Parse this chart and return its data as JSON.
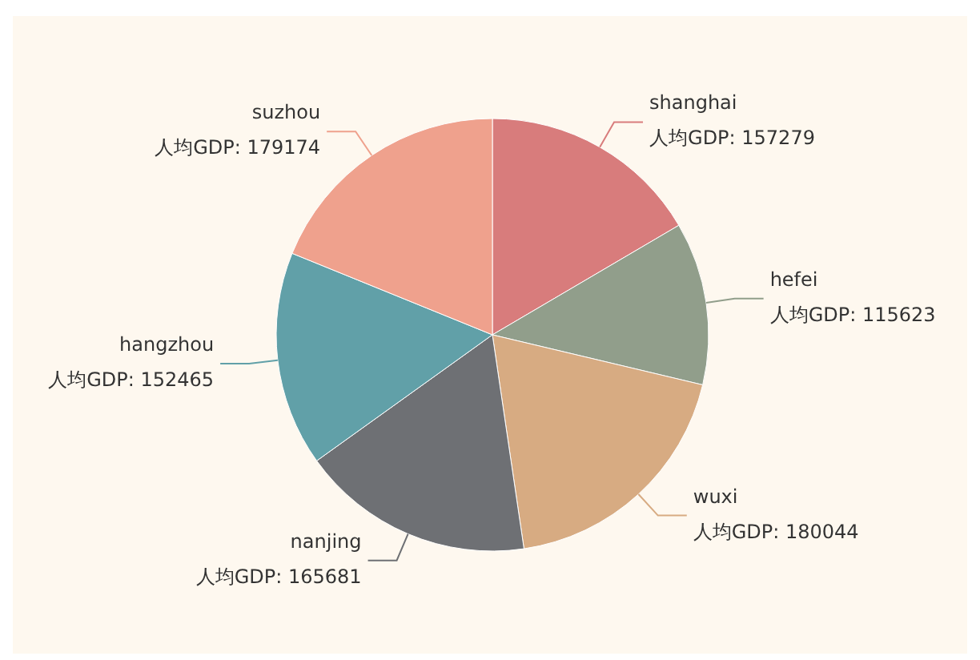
{
  "chart_data": {
    "type": "pie",
    "categories": [
      "shanghai",
      "hefei",
      "wuxi",
      "nanjing",
      "hangzhou",
      "suzhou"
    ],
    "values": [
      157279,
      115623,
      180044,
      165681,
      152465,
      179174
    ],
    "colors": [
      "#d87c7c",
      "#919e8b",
      "#d7ab82",
      "#6e7074",
      "#61a0a8",
      "#efa18d"
    ],
    "value_labels": [
      "人均GDP: 157279",
      "人均GDP: 115623",
      "人均GDP: 180044",
      "人均GDP: 165681",
      "人均GDP: 152465",
      "人均GDP: 179174"
    ]
  }
}
